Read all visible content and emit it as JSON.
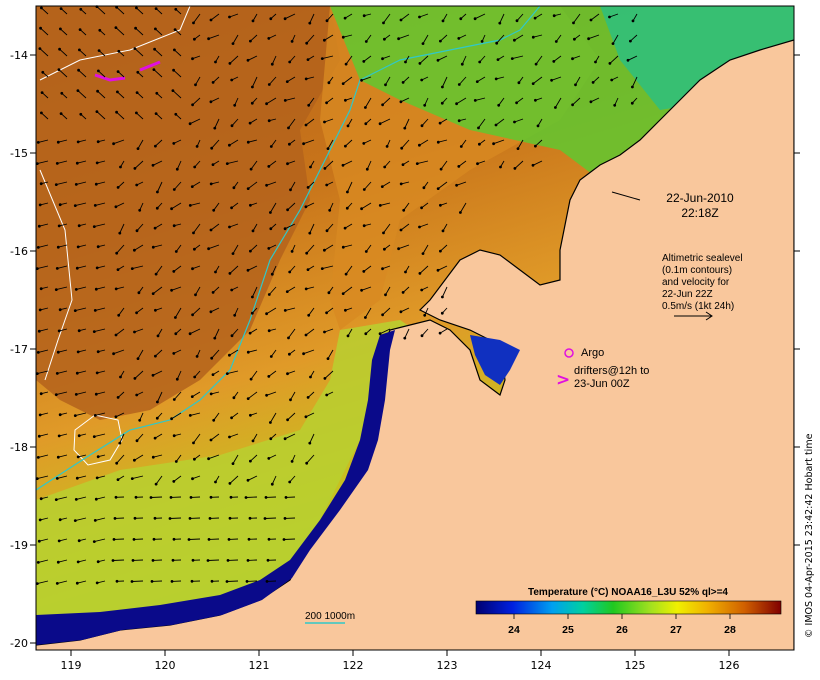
{
  "map": {
    "x_ticks": [
      "119",
      "120",
      "121",
      "122",
      "123",
      "124",
      "125",
      "126"
    ],
    "y_ticks": [
      "-14",
      "-15",
      "-16",
      "-17",
      "-18",
      "-19",
      "-20"
    ],
    "date_line1": "22-Jun-2010",
    "date_line2": "22:18Z",
    "sealevel_lines": [
      "Altimetric sealevel",
      "(0.1m contours)",
      "and velocity for",
      "22-Jun 22Z",
      "0.5m/s (1kt 24h)"
    ],
    "argo_label": "Argo",
    "drifter_symbol": ">",
    "drifter_lines": [
      "drifters@12h to",
      "23-Jun 00Z"
    ],
    "depth_label": "200  1000m",
    "colorbar_title": "Temperature (°C) NOAA16_L3U 52% ql>=4",
    "colorbar_labels": [
      "24",
      "25",
      "26",
      "27",
      "28"
    ],
    "credit": "© IMOS 04-Apr-2015 23:42:42 Hobart time",
    "colors": {
      "land": "#f9c79c",
      "warm": "#d27a18",
      "cold": "#0a0a8a",
      "argo": "#e010e0",
      "contour_200": "#30c8c8",
      "contour_1000": "#ffffff"
    }
  }
}
